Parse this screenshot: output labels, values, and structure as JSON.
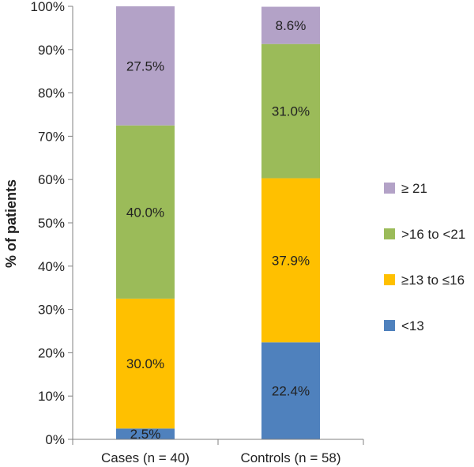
{
  "chart_data": {
    "type": "bar",
    "stacked": true,
    "ylabel": "% of patients",
    "xlabel": "",
    "ylim": [
      0,
      100
    ],
    "y_ticks": [
      "0%",
      "10%",
      "20%",
      "30%",
      "40%",
      "50%",
      "60%",
      "70%",
      "80%",
      "90%",
      "100%"
    ],
    "categories": [
      "Cases (n = 40)",
      "Controls (n = 58)"
    ],
    "series": [
      {
        "name": "<13",
        "color": "#4f81bd",
        "values": [
          2.5,
          22.4
        ],
        "labels": [
          "2.5%",
          "22.4%"
        ]
      },
      {
        "name": "≥13 to ≤16",
        "color": "#ffc000",
        "values": [
          30.0,
          37.9
        ],
        "labels": [
          "30.0%",
          "37.9%"
        ]
      },
      {
        "name": ">16 to <21",
        "color": "#9bbb59",
        "values": [
          40.0,
          31.0
        ],
        "labels": [
          "40.0%",
          "31.0%"
        ]
      },
      {
        "name": "≥ 21",
        "color": "#b3a2c7",
        "values": [
          27.5,
          8.6
        ],
        "labels": [
          "27.5%",
          "8.6%"
        ]
      }
    ],
    "legend_position": "right",
    "legend_order": [
      "≥ 21",
      ">16 to <21",
      "≥13 to ≤16",
      "<13"
    ],
    "grid": false
  }
}
